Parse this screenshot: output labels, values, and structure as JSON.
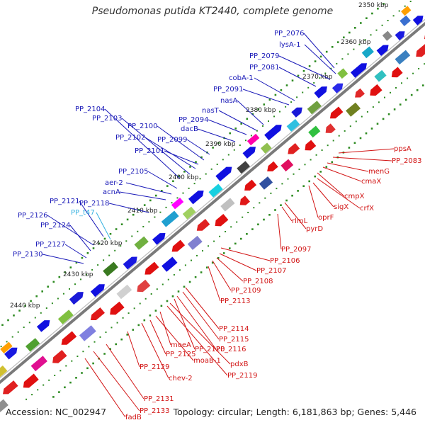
{
  "title": "Pseudomonas putida KT2440, complete genome",
  "footer": {
    "accession": "Accession: NC_002947",
    "topology": "Topology: circular; Length: 6,181,863 bp; Genes: 5,446"
  },
  "colors": {
    "backbone": "#7a7a7a",
    "forward_label": "#1a1ab8",
    "reverse_label": "#d21414",
    "rna_label": "#33b0e0",
    "tick": "#2e8b22"
  },
  "kbp_ticks": [
    "2350 kbp",
    "2360 kbp",
    "2370 kbp",
    "2380 kbp",
    "2390 kbp",
    "2400 kbp",
    "2410 kbp",
    "2420 kbp",
    "2430 kbp",
    "2440 kbp"
  ],
  "forward_labels": [
    "PP_2076",
    "lysA-1",
    "PP_2079",
    "PP_2081",
    "cobA-1",
    "PP_2091",
    "nasA",
    "nasT",
    "PP_2094",
    "dacB",
    "PP_2099",
    "PP_2100",
    "PP_2101",
    "PP_2102",
    "PP_2103",
    "PP_2104",
    "PP_2105",
    "aer-2",
    "acnA",
    "PP_2118",
    "PP_2121",
    "PP_2126",
    "PP_2124",
    "PP_2127",
    "PP_2130"
  ],
  "rna_labels": [
    "PP_t47"
  ],
  "reverse_labels": [
    "ppsA",
    "PP_2083",
    "menG",
    "cmaX",
    "cmpX",
    "crfX",
    "sigX",
    "oprF",
    "pyrD",
    "rlmL",
    "PP_2097",
    "PP_2106",
    "PP_2107",
    "PP_2108",
    "PP_2109",
    "PP_2113",
    "PP_2114",
    "PP_2115",
    "PP_2116",
    "PP_2120",
    "pdxB",
    "PP_2119",
    "moeA",
    "moaB-1",
    "PP_2125",
    "chev-2",
    "PP_2129",
    "PP_2131",
    "PP_2133",
    "fadB"
  ]
}
